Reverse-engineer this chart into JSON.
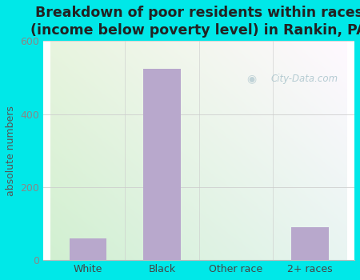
{
  "categories": [
    "White",
    "Black",
    "Other race",
    "2+ races"
  ],
  "values": [
    60,
    525,
    0,
    90
  ],
  "bar_color": "#b8a8cc",
  "title_line1": "Breakdown of poor residents within races",
  "title_line2": "(income below poverty level) in Rankin, PA",
  "ylabel": "absolute numbers",
  "ylim": [
    0,
    600
  ],
  "yticks": [
    0,
    200,
    400,
    600
  ],
  "background_outer": "#00e8e8",
  "grid_color": "#cccccc",
  "watermark": "City-Data.com",
  "title_fontsize": 12.5,
  "ylabel_fontsize": 9,
  "tick_fontsize": 9,
  "title_color": "#222222",
  "tick_color": "#888888"
}
